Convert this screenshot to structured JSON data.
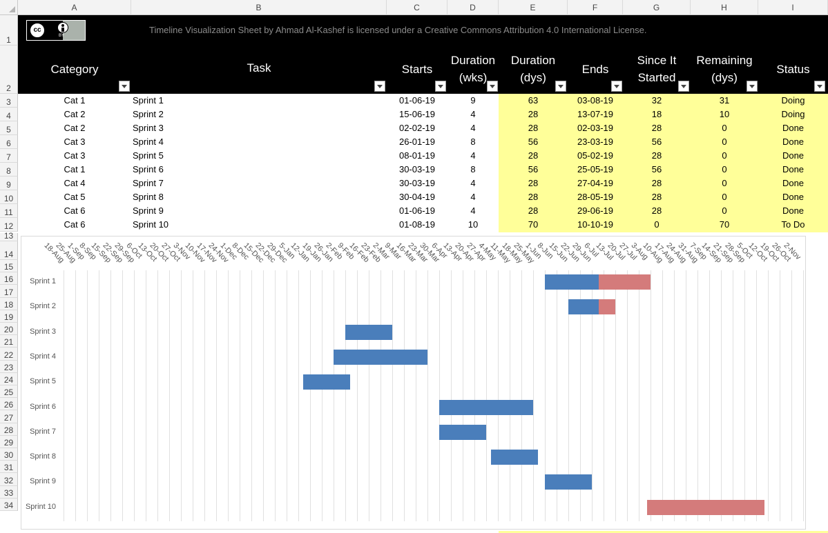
{
  "columns": [
    "A",
    "B",
    "C",
    "D",
    "E",
    "F",
    "G",
    "H",
    "I"
  ],
  "rows": [
    "1",
    "2",
    "3",
    "4",
    "5",
    "6",
    "7",
    "8",
    "9",
    "10",
    "11",
    "12",
    "13",
    "14",
    "15",
    "16",
    "17",
    "18",
    "19",
    "20",
    "21",
    "22",
    "23",
    "24",
    "25",
    "26",
    "27",
    "28",
    "29",
    "30",
    "31",
    "32",
    "33",
    "34"
  ],
  "banner": {
    "logo_cc": "cc",
    "logo_by": "BY",
    "text": "Timeline Visualization Sheet by Ahmad Al-Kashef is licensed under a Creative Commons Attribution 4.0 International License."
  },
  "headers": {
    "category": "Category",
    "task": "Task",
    "starts": "Starts",
    "duration_wks_1": "Duration",
    "duration_wks_2": "(wks)",
    "duration_dys_1": "Duration",
    "duration_dys_2": "(dys)",
    "ends": "Ends",
    "since_1": "Since It",
    "since_2": "Started",
    "remaining_1": "Remaining",
    "remaining_2": "(dys)",
    "status": "Status"
  },
  "table": [
    {
      "cat": "Cat 1",
      "task": "Sprint 1",
      "start": "01-06-19",
      "wks": "9",
      "dys": "63",
      "end": "03-08-19",
      "since": "32",
      "rem": "31",
      "status": "Doing"
    },
    {
      "cat": "Cat 2",
      "task": "Sprint 2",
      "start": "15-06-19",
      "wks": "4",
      "dys": "28",
      "end": "13-07-19",
      "since": "18",
      "rem": "10",
      "status": "Doing"
    },
    {
      "cat": "Cat 2",
      "task": "Sprint 3",
      "start": "02-02-19",
      "wks": "4",
      "dys": "28",
      "end": "02-03-19",
      "since": "28",
      "rem": "0",
      "status": "Done"
    },
    {
      "cat": "Cat 3",
      "task": "Sprint 4",
      "start": "26-01-19",
      "wks": "8",
      "dys": "56",
      "end": "23-03-19",
      "since": "56",
      "rem": "0",
      "status": "Done"
    },
    {
      "cat": "Cat 3",
      "task": "Sprint 5",
      "start": "08-01-19",
      "wks": "4",
      "dys": "28",
      "end": "05-02-19",
      "since": "28",
      "rem": "0",
      "status": "Done"
    },
    {
      "cat": "Cat 1",
      "task": "Sprint 6",
      "start": "30-03-19",
      "wks": "8",
      "dys": "56",
      "end": "25-05-19",
      "since": "56",
      "rem": "0",
      "status": "Done"
    },
    {
      "cat": "Cat 4",
      "task": "Sprint 7",
      "start": "30-03-19",
      "wks": "4",
      "dys": "28",
      "end": "27-04-19",
      "since": "28",
      "rem": "0",
      "status": "Done"
    },
    {
      "cat": "Cat 5",
      "task": "Sprint 8",
      "start": "30-04-19",
      "wks": "4",
      "dys": "28",
      "end": "28-05-19",
      "since": "28",
      "rem": "0",
      "status": "Done"
    },
    {
      "cat": "Cat 6",
      "task": "Sprint 9",
      "start": "01-06-19",
      "wks": "4",
      "dys": "28",
      "end": "29-06-19",
      "since": "28",
      "rem": "0",
      "status": "Done"
    },
    {
      "cat": "Cat 6",
      "task": "Sprint 10",
      "start": "01-08-19",
      "wks": "10",
      "dys": "70",
      "end": "10-10-19",
      "since": "0",
      "rem": "70",
      "status": "To Do"
    }
  ],
  "colors": {
    "elapsed": "#4a7ebb",
    "remaining": "#d47b7b",
    "highlight": "#ffff99"
  },
  "chart_data": {
    "type": "bar",
    "orientation": "horizontal-stacked-gantt",
    "x_ticks": [
      "18-Aug",
      "25-Aug",
      "1-Sep",
      "8-Sep",
      "15-Sep",
      "22-Sep",
      "29-Sep",
      "6-Oct",
      "13-Oct",
      "20-Oct",
      "27-Oct",
      "3-Nov",
      "10-Nov",
      "17-Nov",
      "24-Nov",
      "1-Dec",
      "8-Dec",
      "15-Dec",
      "22-Dec",
      "29-Dec",
      "5-Jan",
      "12-Jan",
      "19-Jan",
      "26-Jan",
      "2-Feb",
      "9-Feb",
      "16-Feb",
      "23-Feb",
      "2-Mar",
      "9-Mar",
      "16-Mar",
      "23-Mar",
      "30-Mar",
      "6-Apr",
      "13-Apr",
      "20-Apr",
      "27-Apr",
      "4-May",
      "11-May",
      "18-May",
      "25-May",
      "1-Jun",
      "8-Jun",
      "15-Jun",
      "22-Jun",
      "29-Jun",
      "6-Jul",
      "13-Jul",
      "20-Jul",
      "27-Jul",
      "3-Aug",
      "10-Aug",
      "17-Aug",
      "24-Aug",
      "31-Aug",
      "7-Sep",
      "14-Sep",
      "21-Sep",
      "28-Sep",
      "5-Oct",
      "12-Oct",
      "19-Oct",
      "26-Oct",
      "2-Nov"
    ],
    "categories": [
      "Sprint 1",
      "Sprint 2",
      "Sprint 3",
      "Sprint 4",
      "Sprint 5",
      "Sprint 6",
      "Sprint 7",
      "Sprint 8",
      "Sprint 9",
      "Sprint 10"
    ],
    "start": [
      "2019-06-01",
      "2019-06-15",
      "2019-02-02",
      "2019-01-26",
      "2019-01-08",
      "2019-03-30",
      "2019-03-30",
      "2019-04-30",
      "2019-06-01",
      "2019-08-01"
    ],
    "series": [
      {
        "name": "Since It Started",
        "values": [
          32,
          18,
          28,
          56,
          28,
          56,
          28,
          28,
          28,
          0
        ]
      },
      {
        "name": "Remaining (dys)",
        "values": [
          31,
          10,
          0,
          0,
          0,
          0,
          0,
          0,
          0,
          70
        ]
      }
    ],
    "grid": true
  }
}
